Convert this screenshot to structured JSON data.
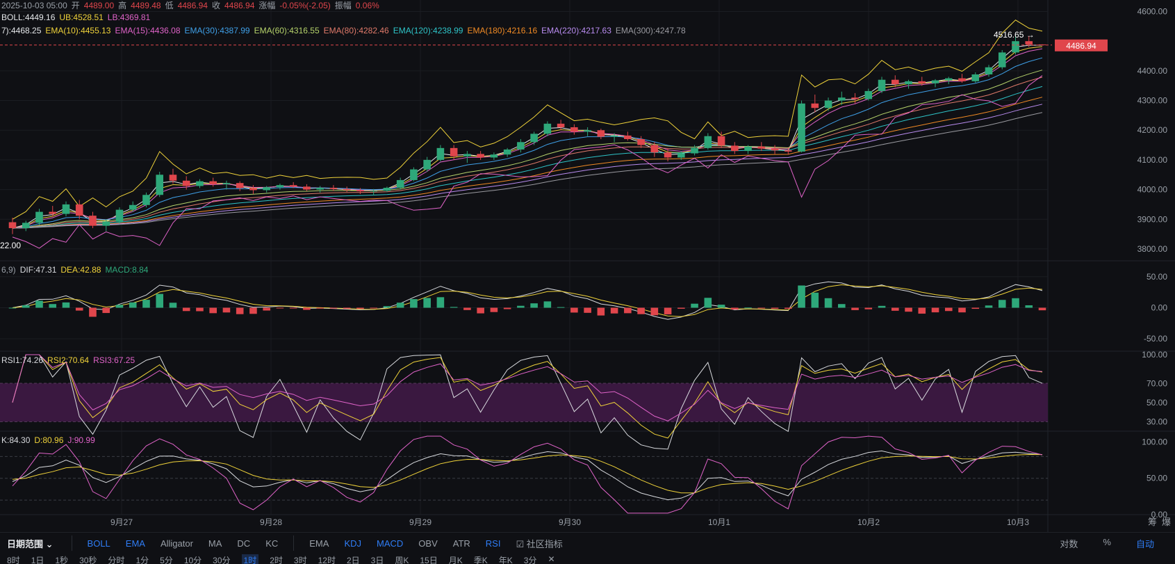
{
  "header": {
    "date_label": "2025-10-03 05:00",
    "open_label": "开",
    "open": "4489.00",
    "high_label": "高",
    "high": "4489.48",
    "low_label": "低",
    "low": "4486.94",
    "close_label": "收",
    "close": "4486.94",
    "change_label": "涨幅",
    "change": "-0.05%(-2.05)",
    "amp_label": "振幅",
    "amp": "0.06%"
  },
  "boll": {
    "mid": "BOLL:4449.16",
    "ub": "UB:4528.51",
    "lb": "LB:4369.81"
  },
  "ema_legend": [
    {
      "text": "7):4468.25",
      "color": "#e6e8eb"
    },
    {
      "text": "EMA(10):4455.13",
      "color": "#f0d33a"
    },
    {
      "text": "EMA(15):4436.08",
      "color": "#e063c9"
    },
    {
      "text": "EMA(30):4387.99",
      "color": "#3fa0e8"
    },
    {
      "text": "EMA(60):4316.55",
      "color": "#b6d36b"
    },
    {
      "text": "EMA(80):4282.46",
      "color": "#e07a6a"
    },
    {
      "text": "EMA(120):4238.99",
      "color": "#2ec4c8"
    },
    {
      "text": "EMA(180):4216.16",
      "color": "#f08a24"
    },
    {
      "text": "EMA(220):4217.63",
      "color": "#b98cf0"
    },
    {
      "text": "EMA(300):4247.78",
      "color": "#9a9aa0"
    }
  ],
  "macd_legend": {
    "prefix": "6,9)",
    "dif": "DIF:47.31",
    "dea": "DEA:42.88",
    "macd": "MACD:8.84"
  },
  "rsi_legend": {
    "rsi1": "RSI1:74.26",
    "rsi2": "RSI2:70.64",
    "rsi3": "RSI3:67.25"
  },
  "kdj_legend": {
    "k": "K:84.30",
    "d": "D:80.96",
    "j": "J:90.99"
  },
  "price_axis": [
    "4600.00",
    "4400.00",
    "4300.00",
    "4200.00",
    "4100.00",
    "4000.00",
    "3900.00",
    "3800.00"
  ],
  "macd_axis": [
    "50.00",
    "0.00",
    "-50.00"
  ],
  "rsi_axis": [
    "100.00",
    "70.00",
    "50.00",
    "30.00"
  ],
  "kdj_axis": [
    "100.00",
    "50.00",
    "0.00"
  ],
  "last_price": "4486.94",
  "high_marker": "4516.65 →",
  "low_marker": "22.00",
  "x_labels": [
    "9月27",
    "9月28",
    "9月29",
    "9月30",
    "10月1",
    "10月2",
    "10月3"
  ],
  "corner_labels": {
    "chip": "筹",
    "burst": "爆"
  },
  "colors": {
    "up": "#2ea87a",
    "down": "#e0464c",
    "accent": "#2f7df6",
    "rsi_band": "#3a1840"
  },
  "toolbar": {
    "date_range": "日期范围",
    "main_indicators": [
      {
        "label": "BOLL",
        "active": true
      },
      {
        "label": "EMA",
        "active": true
      },
      {
        "label": "Alligator",
        "active": false
      },
      {
        "label": "MA",
        "active": false
      },
      {
        "label": "DC",
        "active": false
      },
      {
        "label": "KC",
        "active": false
      }
    ],
    "sub_indicators": [
      {
        "label": "EMA",
        "active": false
      },
      {
        "label": "KDJ",
        "active": true
      },
      {
        "label": "MACD",
        "active": true
      },
      {
        "label": "OBV",
        "active": false
      },
      {
        "label": "ATR",
        "active": false
      },
      {
        "label": "RSI",
        "active": true
      }
    ],
    "community": "社区指标",
    "right": [
      {
        "label": "对数",
        "active": false
      },
      {
        "label": "%",
        "active": false
      },
      {
        "label": "自动",
        "active": true
      }
    ]
  },
  "intervals": [
    {
      "label": "8时",
      "active": false
    },
    {
      "label": "1日",
      "active": false
    },
    {
      "label": "1秒",
      "active": false
    },
    {
      "label": "30秒",
      "active": false
    },
    {
      "label": "分时",
      "active": false
    },
    {
      "label": "1分",
      "active": false
    },
    {
      "label": "5分",
      "active": false
    },
    {
      "label": "10分",
      "active": false
    },
    {
      "label": "30分",
      "active": false
    },
    {
      "label": "1时",
      "active": true
    },
    {
      "label": "2时",
      "active": false
    },
    {
      "label": "3时",
      "active": false
    },
    {
      "label": "12时",
      "active": false
    },
    {
      "label": "2日",
      "active": false
    },
    {
      "label": "3日",
      "active": false
    },
    {
      "label": "周K",
      "active": false
    },
    {
      "label": "15日",
      "active": false
    },
    {
      "label": "月K",
      "active": false
    },
    {
      "label": "季K",
      "active": false
    },
    {
      "label": "年K",
      "active": false
    },
    {
      "label": "3分",
      "active": false
    },
    {
      "label": "✕",
      "active": false
    }
  ],
  "chart_data": {
    "type": "candlestick",
    "interval": "1h",
    "x_range_dates": [
      "9月27",
      "10月3"
    ],
    "price_ylim": [
      3760,
      4620
    ],
    "candles_ohlc": [
      [
        3890,
        3905,
        3850,
        3870
      ],
      [
        3870,
        3895,
        3860,
        3888
      ],
      [
        3888,
        3935,
        3880,
        3925
      ],
      [
        3925,
        3945,
        3910,
        3918
      ],
      [
        3918,
        3960,
        3910,
        3950
      ],
      [
        3950,
        3965,
        3900,
        3912
      ],
      [
        3912,
        3925,
        3870,
        3878
      ],
      [
        3878,
        3900,
        3860,
        3892
      ],
      [
        3892,
        3940,
        3885,
        3932
      ],
      [
        3932,
        3960,
        3925,
        3948
      ],
      [
        3948,
        3990,
        3940,
        3982
      ],
      [
        3982,
        4060,
        3975,
        4050
      ],
      [
        4050,
        4070,
        4020,
        4030
      ],
      [
        4030,
        4045,
        4000,
        4012
      ],
      [
        4012,
        4035,
        4005,
        4028
      ],
      [
        4028,
        4040,
        4010,
        4018
      ],
      [
        4018,
        4030,
        4000,
        4022
      ],
      [
        4022,
        4028,
        3995,
        4005
      ],
      [
        4005,
        4015,
        3985,
        3998
      ],
      [
        3998,
        4012,
        3990,
        4008
      ],
      [
        4008,
        4020,
        4000,
        4015
      ],
      [
        4015,
        4025,
        4005,
        4010
      ],
      [
        4010,
        4018,
        3995,
        4000
      ],
      [
        4000,
        4012,
        3990,
        4006
      ],
      [
        4006,
        4015,
        3995,
        4002
      ],
      [
        4002,
        4010,
        3992,
        3998
      ],
      [
        3998,
        4005,
        3985,
        3994
      ],
      [
        3994,
        4002,
        3980,
        3996
      ],
      [
        3996,
        4010,
        3992,
        4006
      ],
      [
        4006,
        4040,
        4000,
        4032
      ],
      [
        4032,
        4075,
        4028,
        4068
      ],
      [
        4068,
        4110,
        4060,
        4100
      ],
      [
        4100,
        4150,
        4095,
        4140
      ],
      [
        4140,
        4150,
        4100,
        4112
      ],
      [
        4112,
        4130,
        4090,
        4120
      ],
      [
        4120,
        4130,
        4100,
        4108
      ],
      [
        4108,
        4125,
        4100,
        4118
      ],
      [
        4118,
        4140,
        4110,
        4135
      ],
      [
        4135,
        4170,
        4125,
        4160
      ],
      [
        4160,
        4195,
        4150,
        4188
      ],
      [
        4188,
        4230,
        4180,
        4222
      ],
      [
        4222,
        4235,
        4200,
        4210
      ],
      [
        4210,
        4220,
        4185,
        4195
      ],
      [
        4195,
        4210,
        4180,
        4200
      ],
      [
        4200,
        4205,
        4170,
        4178
      ],
      [
        4178,
        4190,
        4160,
        4182
      ],
      [
        4182,
        4195,
        4165,
        4170
      ],
      [
        4170,
        4180,
        4140,
        4150
      ],
      [
        4150,
        4160,
        4110,
        4125
      ],
      [
        4125,
        4140,
        4095,
        4108
      ],
      [
        4108,
        4130,
        4100,
        4122
      ],
      [
        4122,
        4150,
        4115,
        4140
      ],
      [
        4140,
        4190,
        4135,
        4180
      ],
      [
        4180,
        4195,
        4140,
        4148
      ],
      [
        4148,
        4160,
        4120,
        4130
      ],
      [
        4130,
        4150,
        4120,
        4145
      ],
      [
        4145,
        4160,
        4130,
        4138
      ],
      [
        4138,
        4150,
        4120,
        4132
      ],
      [
        4132,
        4140,
        4118,
        4128
      ],
      [
        4128,
        4300,
        4125,
        4290
      ],
      [
        4290,
        4320,
        4260,
        4275
      ],
      [
        4275,
        4310,
        4265,
        4300
      ],
      [
        4300,
        4330,
        4285,
        4310
      ],
      [
        4310,
        4325,
        4290,
        4305
      ],
      [
        4305,
        4340,
        4300,
        4332
      ],
      [
        4332,
        4380,
        4325,
        4370
      ],
      [
        4370,
        4385,
        4345,
        4355
      ],
      [
        4355,
        4370,
        4340,
        4365
      ],
      [
        4365,
        4380,
        4350,
        4358
      ],
      [
        4358,
        4372,
        4345,
        4368
      ],
      [
        4368,
        4380,
        4355,
        4375
      ],
      [
        4375,
        4390,
        4360,
        4365
      ],
      [
        4365,
        4395,
        4360,
        4388
      ],
      [
        4388,
        4420,
        4380,
        4412
      ],
      [
        4412,
        4470,
        4405,
        4462
      ],
      [
        4462,
        4520,
        4455,
        4500
      ],
      [
        4500,
        4517,
        4480,
        4489
      ],
      [
        4489,
        4489.48,
        4486.94,
        4486.94
      ]
    ],
    "macd_ylim": [
      -70,
      70
    ],
    "rsi_ylim": [
      20,
      100
    ],
    "rsi_band": [
      30,
      70
    ],
    "kdj_ylim": [
      0,
      110
    ],
    "kdj_lines": [
      20,
      50,
      80
    ]
  }
}
